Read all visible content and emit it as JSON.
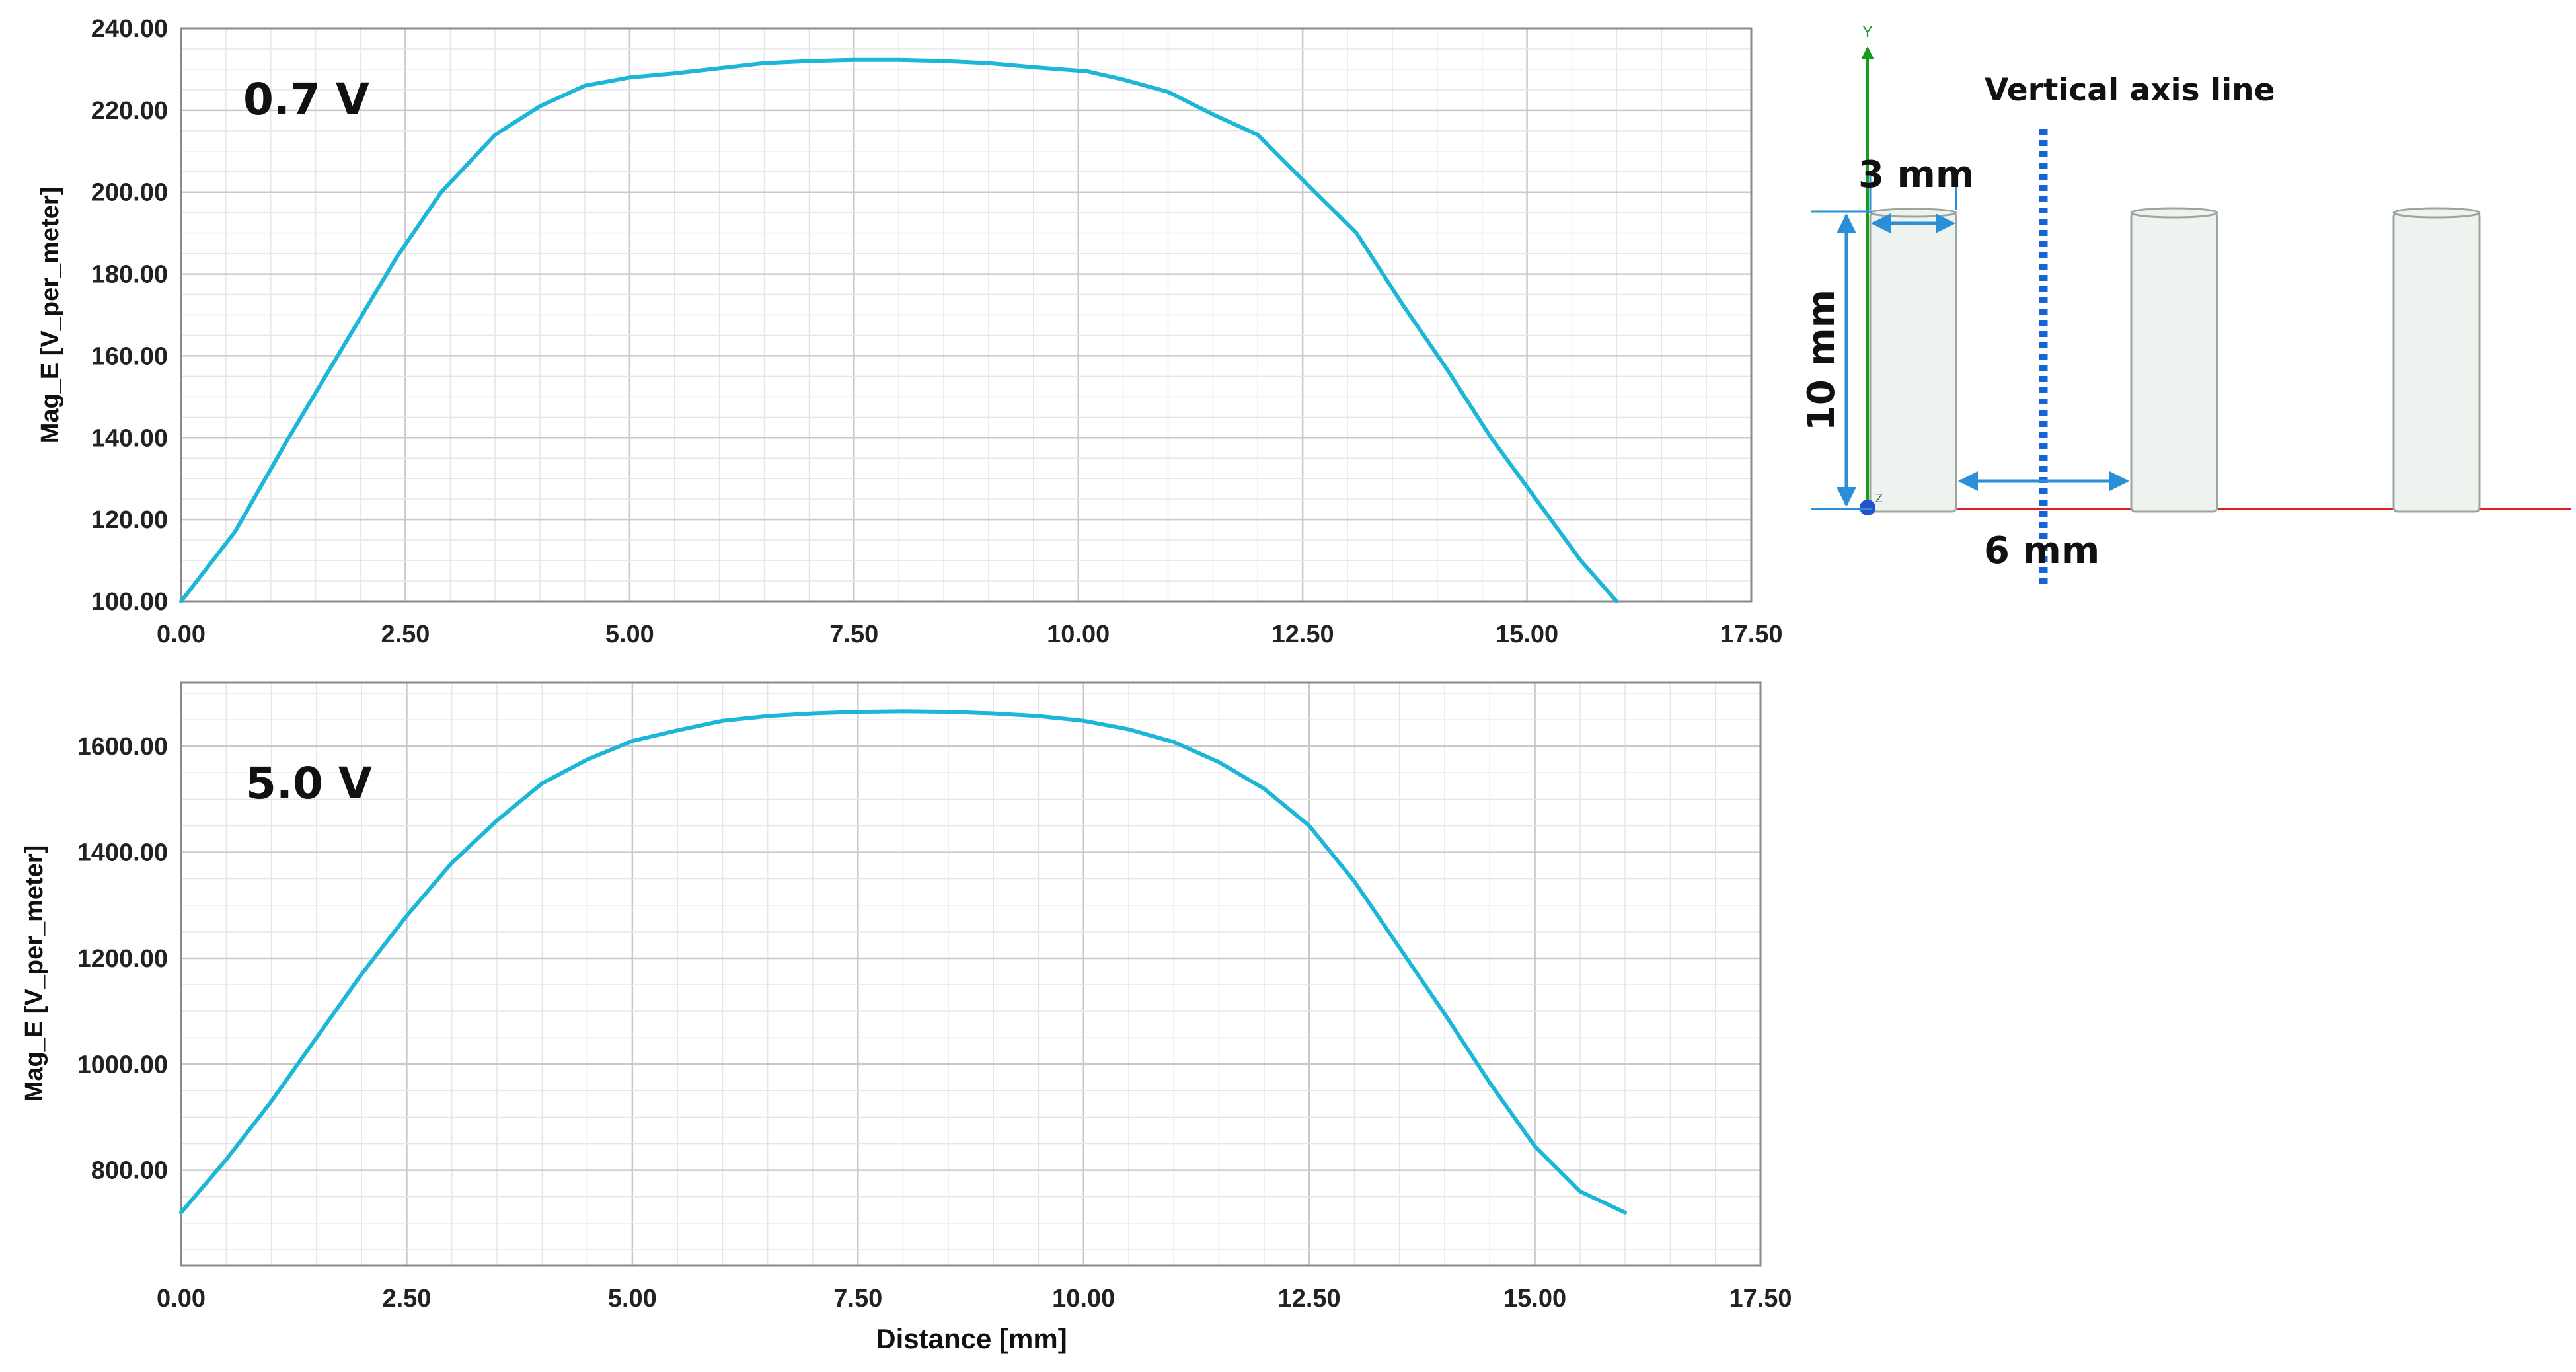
{
  "chart_data": [
    {
      "type": "line",
      "annotation": "0.7 V",
      "xlabel": "",
      "ylabel": "Mag_E [V_per_meter]",
      "xlim": [
        0,
        17.5
      ],
      "ylim": [
        100,
        240
      ],
      "x_ticks": [
        "0.00",
        "2.50",
        "5.00",
        "7.50",
        "10.00",
        "12.50",
        "15.00",
        "17.50"
      ],
      "y_ticks": [
        "100.00",
        "120.00",
        "140.00",
        "160.00",
        "180.00",
        "200.00",
        "220.00",
        "240.00"
      ],
      "grid": true,
      "series": [
        {
          "color": "#1cb6d8",
          "x": [
            0,
            0.6,
            1.2,
            1.8,
            2.4,
            2.9,
            3.5,
            4.0,
            4.5,
            5.0,
            5.5,
            5.9,
            6.5,
            7.0,
            7.5,
            8.0,
            8.5,
            9.0,
            9.5,
            10.1,
            10.5,
            11.0,
            11.5,
            12.0,
            12.5,
            13.1,
            13.6,
            14.1,
            14.6,
            15.1,
            15.6,
            16.0
          ],
          "y": [
            100,
            117,
            140,
            162,
            184,
            200,
            214,
            221,
            226,
            228,
            229,
            230,
            231.5,
            232,
            232.3,
            232.3,
            232,
            231.5,
            230.5,
            229.5,
            227.5,
            224.5,
            219,
            214,
            203,
            190,
            173,
            157,
            140,
            125,
            110,
            100
          ]
        }
      ]
    },
    {
      "type": "line",
      "annotation": "5.0 V",
      "xlabel": "Distance [mm]",
      "ylabel": "Mag_E [V_per_meter]",
      "xlim": [
        0,
        17.5
      ],
      "ylim": [
        620,
        1720
      ],
      "x_ticks": [
        "0.00",
        "2.50",
        "5.00",
        "7.50",
        "10.00",
        "12.50",
        "15.00",
        "17.50"
      ],
      "y_ticks": [
        "800.00",
        "1000.00",
        "1200.00",
        "1400.00",
        "1600.00"
      ],
      "grid": true,
      "series": [
        {
          "color": "#1cb6d8",
          "x": [
            0,
            0.5,
            1.0,
            1.5,
            2.0,
            2.5,
            3.0,
            3.5,
            4.0,
            4.5,
            5.0,
            5.5,
            6.0,
            6.5,
            7.0,
            7.5,
            8.0,
            8.5,
            9.0,
            9.5,
            10.0,
            10.5,
            11.0,
            11.5,
            12.0,
            12.5,
            13.0,
            13.5,
            14.0,
            14.5,
            15.0,
            15.5,
            16.0
          ],
          "y": [
            720,
            820,
            930,
            1050,
            1170,
            1280,
            1380,
            1460,
            1530,
            1575,
            1610,
            1630,
            1648,
            1657,
            1662,
            1665,
            1666,
            1665,
            1662,
            1657,
            1648,
            1632,
            1608,
            1570,
            1520,
            1450,
            1345,
            1220,
            1095,
            965,
            845,
            760,
            720
          ]
        }
      ]
    }
  ],
  "diagram": {
    "title": "Vertical axis line",
    "dim_width": "3 mm",
    "dim_height": "10 mm",
    "dim_gap": "6 mm",
    "axis_y_label": "Y",
    "axis_z_label": "Z",
    "colors": {
      "curve": "#1cb6d8",
      "dimension_arrow": "#2a8fd6",
      "dotted_line": "#1565d8",
      "y_axis": "#1a9a1a",
      "x_axis": "#e02020",
      "electrode_fill": "#eef3ef",
      "electrode_edge": "#9aa69e"
    }
  }
}
